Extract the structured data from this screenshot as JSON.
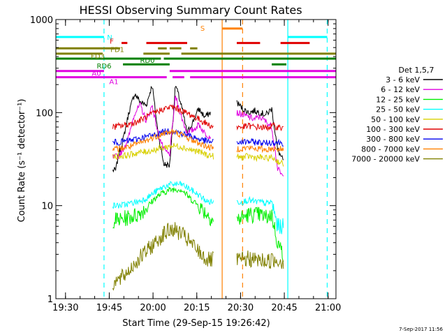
{
  "chart_data": {
    "type": "line",
    "title": "HESSI Observing Summary Count Rates",
    "xlabel": "Start Time (29-Sep-15 19:26:42)",
    "ylabel": "Count Rate (s⁻¹ detector⁻¹)",
    "y_scale": "log",
    "ylim": [
      1,
      1000
    ],
    "xlim_minutes_after_1926": [
      0,
      96
    ],
    "x_ticks": [
      "19:30",
      "19:45",
      "20:00",
      "20:15",
      "20:30",
      "20:45",
      "21:00"
    ],
    "y_ticks": [
      "1",
      "10",
      "100",
      "1000"
    ],
    "legend_title": "Det 1,5,7",
    "legend_position": "right",
    "timestamp": "7-Sep-2017 11:56",
    "series": [
      {
        "name": "3 - 6 keV",
        "color": "#000000",
        "segments": [
          {
            "t": [
              19.5,
              20.5,
              21.5,
              23,
              25,
              27,
              29,
              31,
              33,
              35,
              37,
              39,
              41,
              43,
              45,
              47,
              49,
              51,
              53
            ],
            "v": [
              24,
              24,
              35,
              50,
              100,
              160,
              130,
              120,
              200,
              60,
              28,
              27,
              200,
              120,
              60,
              80,
              110,
              90,
              100
            ]
          },
          {
            "t": [
              62,
              64,
              66,
              68,
              70,
              72,
              74,
              76,
              78
            ],
            "v": [
              130,
              110,
              100,
              105,
              100,
              95,
              110,
              40,
              30
            ]
          }
        ]
      },
      {
        "name": "6 - 12 keV",
        "color": "#e000e0",
        "segments": [
          {
            "t": [
              19.5,
              21.5,
              23,
              25,
              27,
              29,
              31,
              33,
              35,
              37,
              39,
              41,
              43,
              45,
              47,
              49,
              51,
              53
            ],
            "v": [
              33,
              34,
              40,
              55,
              100,
              120,
              80,
              120,
              60,
              40,
              35,
              150,
              90,
              60,
              65,
              75,
              60,
              55
            ]
          },
          {
            "t": [
              62,
              64,
              66,
              68,
              70,
              72,
              74,
              76,
              78
            ],
            "v": [
              100,
              95,
              90,
              85,
              90,
              80,
              70,
              25,
              20
            ]
          }
        ]
      },
      {
        "name": "12 - 25 keV",
        "color": "#00ee00",
        "segments": [
          {
            "t": [
              19.5,
              22,
              25,
              28,
              31,
              34,
              37,
              40,
              43,
              46,
              49,
              52,
              54
            ],
            "v": [
              7,
              7,
              7.5,
              8,
              9.5,
              12,
              14,
              15,
              15,
              12,
              10,
              8,
              7
            ]
          },
          {
            "t": [
              62,
              64,
              66,
              68,
              70,
              72,
              74,
              76,
              78
            ],
            "v": [
              7,
              7.5,
              8,
              8,
              8,
              7.5,
              8,
              4,
              3
            ]
          }
        ]
      },
      {
        "name": "25 - 50 keV",
        "color": "#00ffff",
        "segments": [
          {
            "t": [
              19.5,
              22,
              25,
              28,
              31,
              34,
              37,
              40,
              43,
              46,
              49,
              52,
              54
            ],
            "v": [
              10,
              10,
              10.5,
              11,
              12,
              14,
              16,
              17,
              17,
              15,
              13,
              11,
              11
            ]
          },
          {
            "t": [
              62,
              64,
              66,
              68,
              70,
              72,
              74,
              76,
              78
            ],
            "v": [
              11,
              11,
              11.5,
              11,
              11,
              10.5,
              11,
              6,
              6
            ]
          }
        ]
      },
      {
        "name": "50 - 100 keV",
        "color": "#d8d000",
        "segments": [
          {
            "t": [
              19.5,
              22,
              25,
              28,
              31,
              34,
              37,
              40,
              43,
              46,
              49,
              52,
              54
            ],
            "v": [
              34,
              34,
              35,
              37,
              38,
              40,
              42,
              44,
              43,
              40,
              38,
              35,
              34
            ]
          },
          {
            "t": [
              62,
              64,
              66,
              68,
              70,
              72,
              74,
              76,
              78
            ],
            "v": [
              33,
              33,
              34,
              33,
              33,
              32,
              33,
              30,
              28
            ]
          }
        ]
      },
      {
        "name": "100 - 300 keV",
        "color": "#e00000",
        "segments": [
          {
            "t": [
              19.5,
              22,
              25,
              28,
              31,
              34,
              37,
              40,
              43,
              46,
              49,
              52,
              54
            ],
            "v": [
              70,
              72,
              75,
              80,
              90,
              100,
              110,
              115,
              105,
              95,
              85,
              75,
              70
            ]
          },
          {
            "t": [
              62,
              64,
              66,
              68,
              70,
              72,
              74,
              76,
              78
            ],
            "v": [
              70,
              70,
              72,
              70,
              70,
              68,
              72,
              70,
              68
            ]
          }
        ]
      },
      {
        "name": "300 - 800 keV",
        "color": "#0000ee",
        "segments": [
          {
            "t": [
              19.5,
              22,
              25,
              28,
              31,
              34,
              37,
              40,
              43,
              46,
              49,
              52,
              54
            ],
            "v": [
              48,
              48,
              50,
              52,
              55,
              58,
              62,
              64,
              60,
              56,
              52,
              49,
              48
            ]
          },
          {
            "t": [
              62,
              64,
              66,
              68,
              70,
              72,
              74,
              76,
              78
            ],
            "v": [
              48,
              48,
              49,
              48,
              48,
              47,
              48,
              48,
              47
            ]
          }
        ]
      },
      {
        "name": "800 - 7000 keV",
        "color": "#ff8000",
        "segments": [
          {
            "t": [
              19.5,
              22,
              25,
              28,
              31,
              34,
              37,
              40,
              43,
              46,
              49,
              52,
              54
            ],
            "v": [
              40,
              41,
              43,
              46,
              50,
              55,
              60,
              62,
              58,
              52,
              47,
              43,
              41
            ]
          },
          {
            "t": [
              62,
              64,
              66,
              68,
              70,
              72,
              74,
              76,
              78
            ],
            "v": [
              41,
              41,
              42,
              41,
              41,
              40,
              41,
              41,
              40
            ]
          }
        ]
      },
      {
        "name": "7000 - 20000 keV",
        "color": "#808000",
        "segments": [
          {
            "t": [
              19.5,
              22,
              25,
              28,
              31,
              34,
              37,
              40,
              43,
              46,
              49,
              52,
              54
            ],
            "v": [
              1.5,
              1.6,
              2,
              2.6,
              3.2,
              4,
              5,
              5.6,
              5,
              4,
              3.2,
              2.6,
              2.6
            ]
          },
          {
            "t": [
              62,
              64,
              66,
              68,
              70,
              72,
              74,
              76,
              78
            ],
            "v": [
              2.6,
              2.6,
              2.7,
              2.6,
              2.6,
              2.5,
              2.6,
              2.6,
              2.5
            ]
          }
        ]
      }
    ],
    "flag_bars": [
      {
        "label": "N",
        "color": "#00ffff",
        "level": 650,
        "intervals": [
          [
            0,
            16.5
          ],
          [
            79.5,
            93
          ]
        ]
      },
      {
        "label": "F",
        "color": "#e00000",
        "level": 560,
        "intervals": [
          [
            22.5,
            24.5
          ],
          [
            31,
            45
          ],
          [
            62,
            70
          ],
          [
            77,
            87
          ]
        ]
      },
      {
        "label": "FD1",
        "color": "#808000",
        "level": 490,
        "intervals": [
          [
            0,
            22
          ],
          [
            35,
            38
          ],
          [
            39,
            43
          ],
          [
            46,
            48.5
          ]
        ]
      },
      {
        "label": "FD3",
        "color": "#808000",
        "level": 430,
        "intervals": [
          [
            0,
            16
          ],
          [
            30,
            39
          ],
          [
            43,
            96
          ]
        ]
      },
      {
        "label": "RD0",
        "color": "#008000",
        "level": 380,
        "intervals": [
          [
            0,
            36
          ],
          [
            37,
            96
          ]
        ]
      },
      {
        "label": "RD6",
        "color": "#008000",
        "level": 330,
        "intervals": [
          [
            23,
            39
          ],
          [
            74,
            79
          ]
        ]
      },
      {
        "label": "A0",
        "color": "#e000e0",
        "level": 280,
        "intervals": [
          [
            0,
            16.5
          ],
          [
            39,
            96
          ]
        ]
      },
      {
        "label": "A1",
        "color": "#e000e0",
        "level": 240,
        "intervals": [
          [
            0,
            38
          ],
          [
            40,
            44
          ],
          [
            46,
            96
          ]
        ]
      },
      {
        "label": "S",
        "color": "#ff8000",
        "level": 800,
        "intervals": [
          [
            57,
            64
          ]
        ]
      }
    ],
    "vertical_markers": [
      {
        "t": 16.5,
        "color": "#00ffff",
        "style": "dashed"
      },
      {
        "t": 57,
        "color": "#ff8000",
        "style": "solid"
      },
      {
        "t": 64,
        "color": "#ff8000",
        "style": "dashed"
      },
      {
        "t": 79.5,
        "color": "#00ffff",
        "style": "solid"
      },
      {
        "t": 93,
        "color": "#00ffff",
        "style": "dashed"
      }
    ]
  }
}
